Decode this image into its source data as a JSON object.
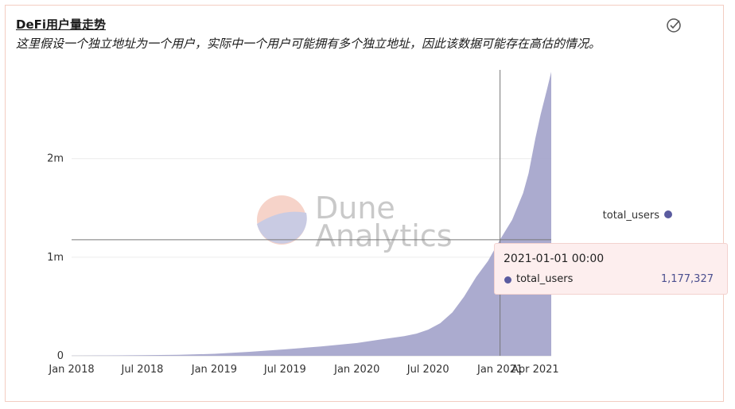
{
  "title": "DeFi用户量走势",
  "subtitle": "这里假设一个独立地址为一个用户，实际中一个用户可能拥有多个独立地址，因此该数据可能存在高估的情况。",
  "header_icon": "check-circle-icon",
  "watermark": {
    "line1": "Dune",
    "line2": "Analytics"
  },
  "colors": {
    "area": "#a6a6cc",
    "series": "#5a5b9f",
    "tooltip_bg": "#fdeeee"
  },
  "tooltip": {
    "date": "2021-01-01 00:00",
    "series_name": "total_users",
    "value": "1,177,327"
  },
  "chart_data": {
    "type": "area",
    "xlabel": "",
    "ylabel": "",
    "y_ticks": [
      {
        "value": 0,
        "label": "0"
      },
      {
        "value": 1000000,
        "label": "1m"
      },
      {
        "value": 2000000,
        "label": "2m"
      }
    ],
    "x_ticks": [
      {
        "date": "2018-01-01",
        "label": "Jan 2018"
      },
      {
        "date": "2018-07-01",
        "label": "Jul 2018"
      },
      {
        "date": "2019-01-01",
        "label": "Jan 2019"
      },
      {
        "date": "2019-07-01",
        "label": "Jul 2019"
      },
      {
        "date": "2020-01-01",
        "label": "Jan 2020"
      },
      {
        "date": "2020-07-01",
        "label": "Jul 2020"
      },
      {
        "date": "2021-01-01",
        "label": "Jan 2021"
      },
      {
        "date": "2021-04-01",
        "label": "Apr 2021"
      }
    ],
    "x_range": [
      "2018-01-01",
      "2021-05-12"
    ],
    "ylim": [
      0,
      2900000
    ],
    "grid": true,
    "legend": "right",
    "crosshair": {
      "date": "2021-01-01",
      "value": 1177327
    },
    "series": [
      {
        "name": "total_users",
        "x": [
          "2018-01-01",
          "2018-04-01",
          "2018-07-01",
          "2018-10-01",
          "2019-01-01",
          "2019-04-01",
          "2019-07-01",
          "2019-10-01",
          "2020-01-01",
          "2020-03-01",
          "2020-05-01",
          "2020-06-01",
          "2020-07-01",
          "2020-08-01",
          "2020-09-01",
          "2020-10-01",
          "2020-11-01",
          "2020-12-01",
          "2021-01-01",
          "2021-02-01",
          "2021-03-01",
          "2021-03-15",
          "2021-04-01",
          "2021-04-15",
          "2021-05-01",
          "2021-05-12"
        ],
        "values": [
          1000,
          3000,
          6000,
          10000,
          20000,
          40000,
          65000,
          95000,
          130000,
          165000,
          200000,
          225000,
          265000,
          330000,
          440000,
          600000,
          800000,
          960000,
          1177327,
          1380000,
          1650000,
          1850000,
          2200000,
          2450000,
          2700000,
          2880000
        ]
      }
    ]
  }
}
